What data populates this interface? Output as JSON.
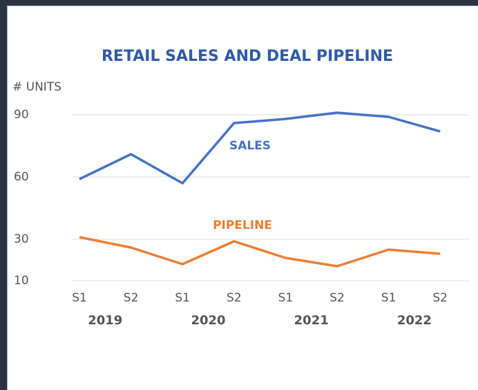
{
  "chart_data": {
    "type": "line",
    "title": "RETAIL SALES AND DEAL PIPELINE",
    "y_label": "# UNITS",
    "categories": [
      "S1",
      "S2",
      "S1",
      "S2",
      "S1",
      "S2",
      "S1",
      "S2"
    ],
    "groups": [
      "2019",
      "2020",
      "2021",
      "2022"
    ],
    "series": [
      {
        "name": "SALES",
        "color": "#4472c4",
        "values": [
          59,
          71,
          57,
          86,
          88,
          91,
          89,
          82
        ]
      },
      {
        "name": "PIPELINE",
        "color": "#ed7d31",
        "values": [
          31,
          26,
          18,
          29,
          21,
          17,
          25,
          23
        ]
      }
    ],
    "ylim": [
      10,
      90
    ],
    "yticks": [
      10,
      30,
      60,
      90
    ],
    "grid": true
  }
}
